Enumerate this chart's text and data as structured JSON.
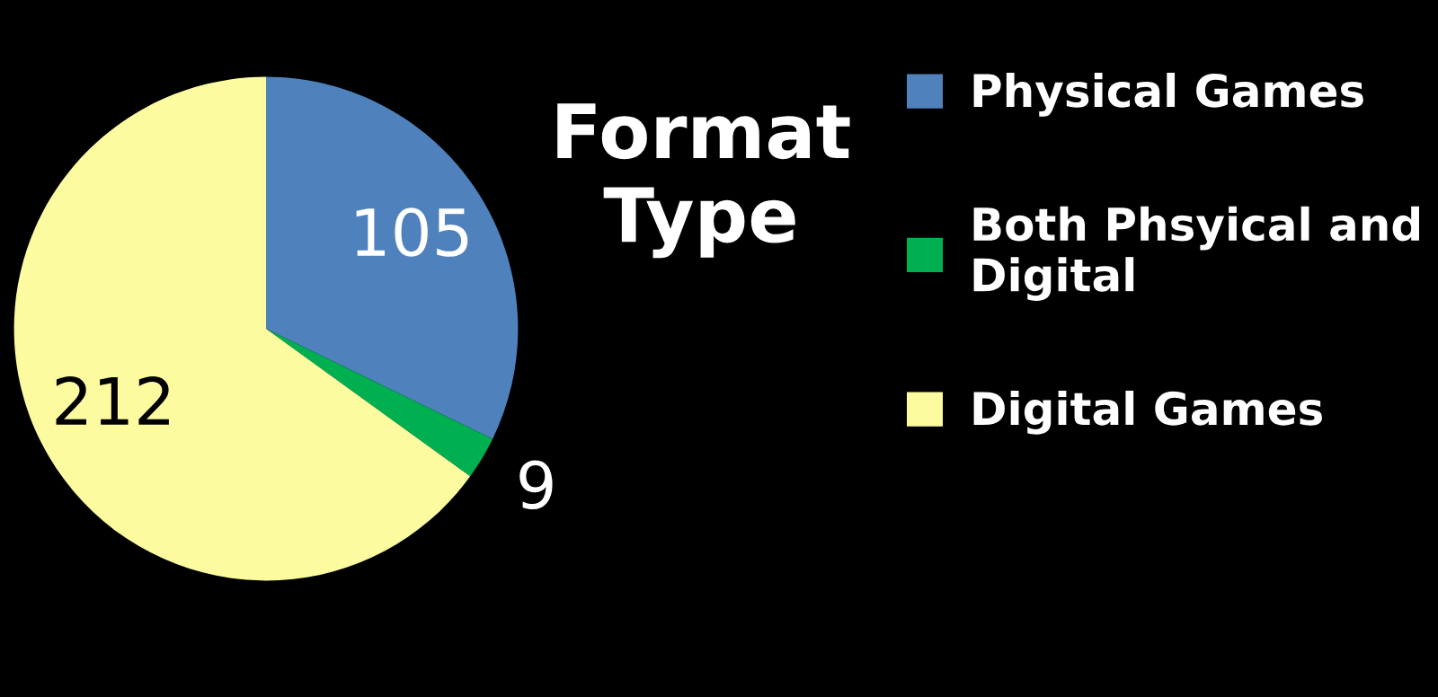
{
  "chart_data": {
    "type": "pie",
    "legend_title": "Format\nType",
    "categories": [
      "Physical Games",
      "Both Phsyical and\nDigital",
      "Digital Games"
    ],
    "values": [
      105,
      9,
      212
    ],
    "colors": [
      "#4f81bd",
      "#00b050",
      "#fdfb9f"
    ],
    "data_labels": true,
    "legend": "right"
  }
}
